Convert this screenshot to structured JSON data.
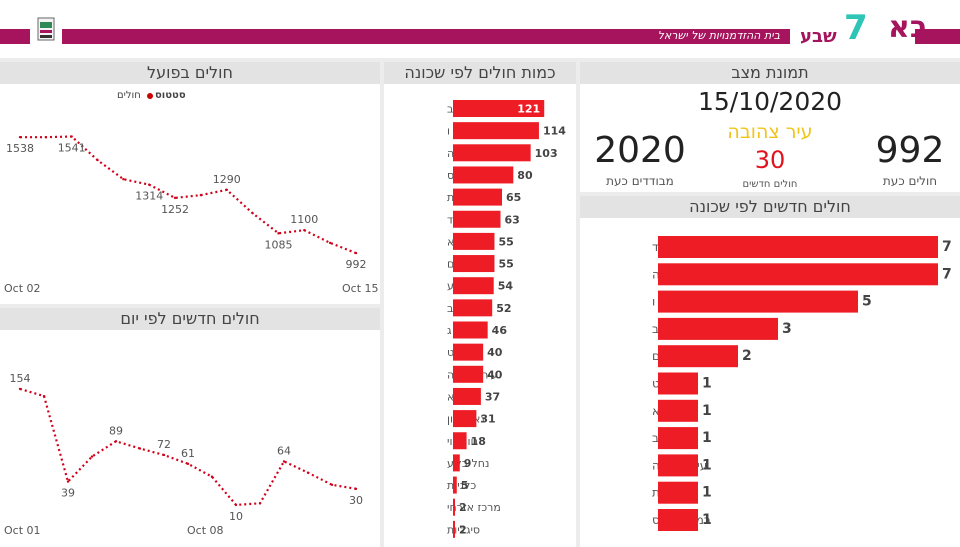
{
  "header": {
    "brand_main": "בא",
    "brand_digit": "7",
    "brand_sub": "שבע",
    "tagline": "בית ההזדמנויות של ישראל",
    "colors": {
      "magenta": "#a5145c",
      "teal": "#2ec4b6",
      "red": "#ee1c25"
    }
  },
  "snapshot": {
    "title": "תמונת מצב",
    "date": "15/10/2020",
    "status": "עיר צהובה",
    "patients_value": "992",
    "patients_label": "חולים כעת",
    "new_value": "30",
    "new_label": "חולים חדשים",
    "isolated_value": "2020",
    "isolated_label": "מבודדים כעת"
  },
  "chart_data": [
    {
      "id": "active",
      "type": "line",
      "title": "חולים בפועל",
      "legend_title": "סטטוס",
      "legend_item": "חולים",
      "x_start_label": "Oct 02",
      "x_end_label": "Oct 15",
      "points": [
        {
          "x": 0,
          "y": 1538,
          "label": "1538"
        },
        {
          "x": 1,
          "y": 1538,
          "label": ""
        },
        {
          "x": 2,
          "y": 1541,
          "label": "1541"
        },
        {
          "x": 3,
          "y": 1430,
          "label": ""
        },
        {
          "x": 4,
          "y": 1340,
          "label": ""
        },
        {
          "x": 5,
          "y": 1314,
          "label": "1314"
        },
        {
          "x": 6,
          "y": 1252,
          "label": "1252"
        },
        {
          "x": 7,
          "y": 1265,
          "label": ""
        },
        {
          "x": 8,
          "y": 1290,
          "label": "1290"
        },
        {
          "x": 9,
          "y": 1180,
          "label": ""
        },
        {
          "x": 10,
          "y": 1085,
          "label": "1085"
        },
        {
          "x": 11,
          "y": 1100,
          "label": "1100"
        },
        {
          "x": 12,
          "y": 1040,
          "label": ""
        },
        {
          "x": 13,
          "y": 992,
          "label": "992"
        }
      ],
      "ylim": [
        950,
        1600
      ]
    },
    {
      "id": "daily",
      "type": "line",
      "title": "חולים חדשים לפי יום",
      "x_start_label": "Oct 01",
      "x_mid_label": "Oct 08",
      "x_end_label": "",
      "points": [
        {
          "x": 0,
          "y": 154,
          "label": "154"
        },
        {
          "x": 1,
          "y": 145,
          "label": ""
        },
        {
          "x": 2,
          "y": 39,
          "label": "39"
        },
        {
          "x": 3,
          "y": 70,
          "label": ""
        },
        {
          "x": 4,
          "y": 89,
          "label": "89"
        },
        {
          "x": 5,
          "y": 80,
          "label": ""
        },
        {
          "x": 6,
          "y": 72,
          "label": "72"
        },
        {
          "x": 7,
          "y": 61,
          "label": "61"
        },
        {
          "x": 8,
          "y": 45,
          "label": ""
        },
        {
          "x": 9,
          "y": 10,
          "label": "10"
        },
        {
          "x": 10,
          "y": 12,
          "label": ""
        },
        {
          "x": 11,
          "y": 64,
          "label": "64"
        },
        {
          "x": 12,
          "y": 50,
          "label": ""
        },
        {
          "x": 13,
          "y": 35,
          "label": ""
        },
        {
          "x": 14,
          "y": 30,
          "label": "30"
        }
      ],
      "ylim": [
        0,
        170
      ]
    },
    {
      "id": "by_neighborhood",
      "type": "bar",
      "title": "כמות חולים לפי שכונה",
      "categories": [
        "נווה זאב",
        "ו",
        "ה",
        "רמות הרכס",
        "רמות",
        "ד",
        "יא",
        "נווה מנחם",
        "לא ידוע",
        "ב",
        "ג",
        "ט",
        "עיר עתיקה",
        "א",
        "נאות לון",
        "נווה נוי",
        "נחל בקע",
        "כלניות",
        "מרכז אזרחי",
        "סיגליות"
      ],
      "values": [
        121,
        114,
        103,
        80,
        65,
        63,
        55,
        55,
        54,
        52,
        46,
        40,
        40,
        37,
        31,
        18,
        9,
        5,
        2,
        2
      ],
      "xlim": [
        0,
        130
      ]
    },
    {
      "id": "new_by_neighborhood",
      "type": "bar",
      "title": "חולים חדשים לפי שכונה",
      "categories": [
        "ד",
        "ה",
        "ו",
        "ב",
        "נווה מנחם",
        "ט",
        "יא",
        "נווה זאב",
        "עיר עתיקה",
        "רמות",
        "רמות הרכס"
      ],
      "values": [
        7,
        7,
        5,
        3,
        2,
        1,
        1,
        1,
        1,
        1,
        1
      ],
      "xlim": [
        0,
        7
      ]
    }
  ]
}
